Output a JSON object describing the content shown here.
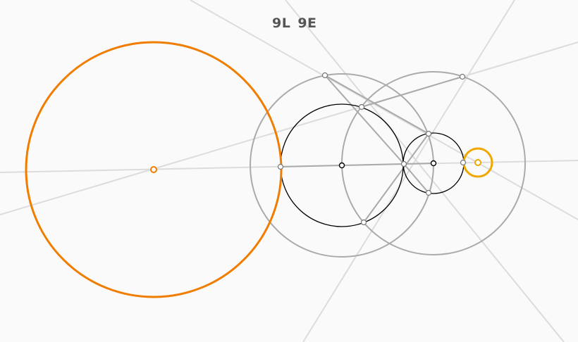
{
  "game": {
    "moves": "9L",
    "euclid_moves": "9E"
  },
  "colors": {
    "background": "#fafafa",
    "construction_line": "#dcdcdc",
    "construction_circle": "#aaaaaa",
    "solution_stroke": "#000000",
    "goal_large": "#f07d00",
    "goal_small": "#f0a800",
    "point_fill": "#ffffff",
    "point_stroke": "#777777"
  },
  "icons": {
    "given_point": "circle-point-icon",
    "goal": "orange-ring-icon"
  }
}
